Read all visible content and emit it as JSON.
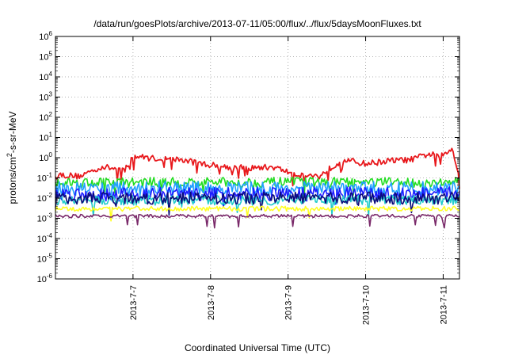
{
  "chart_data": {
    "type": "line",
    "title": "/data/run/goesPlots/archive/2013-07-11/05:00/flux/../flux/5daysMoonFluxes.txt",
    "xlabel": "Coordinated Universal Time (UTC)",
    "ylabel": "protons/cm2-s-sr-MeV",
    "y_scale": "log",
    "ylim": [
      1e-06,
      1000000.0
    ],
    "y_ticks": [
      {
        "exp": -6,
        "label": "10-6"
      },
      {
        "exp": -5,
        "label": "10-5"
      },
      {
        "exp": -4,
        "label": "10-4"
      },
      {
        "exp": -3,
        "label": "10-3"
      },
      {
        "exp": -2,
        "label": "10-2"
      },
      {
        "exp": -1,
        "label": "10-1"
      },
      {
        "exp": 0,
        "label": "100"
      },
      {
        "exp": 1,
        "label": "101"
      },
      {
        "exp": 2,
        "label": "102"
      },
      {
        "exp": 3,
        "label": "103"
      },
      {
        "exp": 4,
        "label": "104"
      },
      {
        "exp": 5,
        "label": "105"
      },
      {
        "exp": 6,
        "label": "106"
      }
    ],
    "x_range_days": [
      0,
      5.21
    ],
    "x_ticks": [
      {
        "day": 1.0,
        "label": "2013-7-7"
      },
      {
        "day": 2.0,
        "label": "2013-7-8"
      },
      {
        "day": 3.0,
        "label": "2013-7-9"
      },
      {
        "day": 4.0,
        "label": "2013-7-10"
      },
      {
        "day": 5.0,
        "label": "2013-7-11"
      }
    ],
    "grid": true,
    "series": [
      {
        "color": "#e8181c",
        "base": 0.45,
        "noise": 0.15,
        "spikes": 0.05,
        "points": [
          [
            0.0,
            0.15
          ],
          [
            0.3,
            0.12
          ],
          [
            0.6,
            0.35
          ],
          [
            0.9,
            0.25
          ],
          [
            1.0,
            1.2
          ],
          [
            1.3,
            0.9
          ],
          [
            1.6,
            0.8
          ],
          [
            1.9,
            0.5
          ],
          [
            2.2,
            0.35
          ],
          [
            2.5,
            0.3
          ],
          [
            2.8,
            0.35
          ],
          [
            3.1,
            0.15
          ],
          [
            3.4,
            0.12
          ],
          [
            3.7,
            0.8
          ],
          [
            4.0,
            0.5
          ],
          [
            4.3,
            0.7
          ],
          [
            4.6,
            0.8
          ],
          [
            4.8,
            1.5
          ],
          [
            5.0,
            1.2
          ],
          [
            5.12,
            3.0
          ],
          [
            5.21,
            0.1
          ]
        ]
      },
      {
        "color": "#22dd22",
        "base": 0.075,
        "noise": 0.25,
        "spikes": 0.02,
        "points": [
          [
            0.0,
            0.06
          ],
          [
            5.21,
            0.06
          ]
        ]
      },
      {
        "color": "#1fa0ff",
        "base": 0.035,
        "noise": 0.35,
        "spikes": 0.02,
        "points": [
          [
            0.0,
            0.03
          ],
          [
            5.21,
            0.03
          ]
        ]
      },
      {
        "color": "#1c1cff",
        "base": 0.018,
        "noise": 0.35,
        "spikes": 0.02,
        "points": [
          [
            0.0,
            0.016
          ],
          [
            5.21,
            0.016
          ]
        ]
      },
      {
        "color": "#22cccc",
        "base": 0.009,
        "noise": 0.25,
        "spikes": 0.02,
        "points": [
          [
            0.0,
            0.008
          ],
          [
            5.21,
            0.008
          ]
        ]
      },
      {
        "color": "#0c0c7a",
        "base": 0.01,
        "noise": 0.3,
        "spikes": 0.02,
        "points": [
          [
            0.0,
            0.01
          ],
          [
            5.21,
            0.01
          ]
        ]
      },
      {
        "color": "#ffff22",
        "base": 0.0032,
        "noise": 0.12,
        "spikes": 0.01,
        "points": [
          [
            0.0,
            0.003
          ],
          [
            5.21,
            0.003
          ]
        ]
      },
      {
        "color": "#7a2a6a",
        "base": 0.0013,
        "noise": 0.08,
        "spikes": 0.03,
        "points": [
          [
            0.0,
            0.0013
          ],
          [
            5.21,
            0.0013
          ]
        ]
      }
    ]
  }
}
